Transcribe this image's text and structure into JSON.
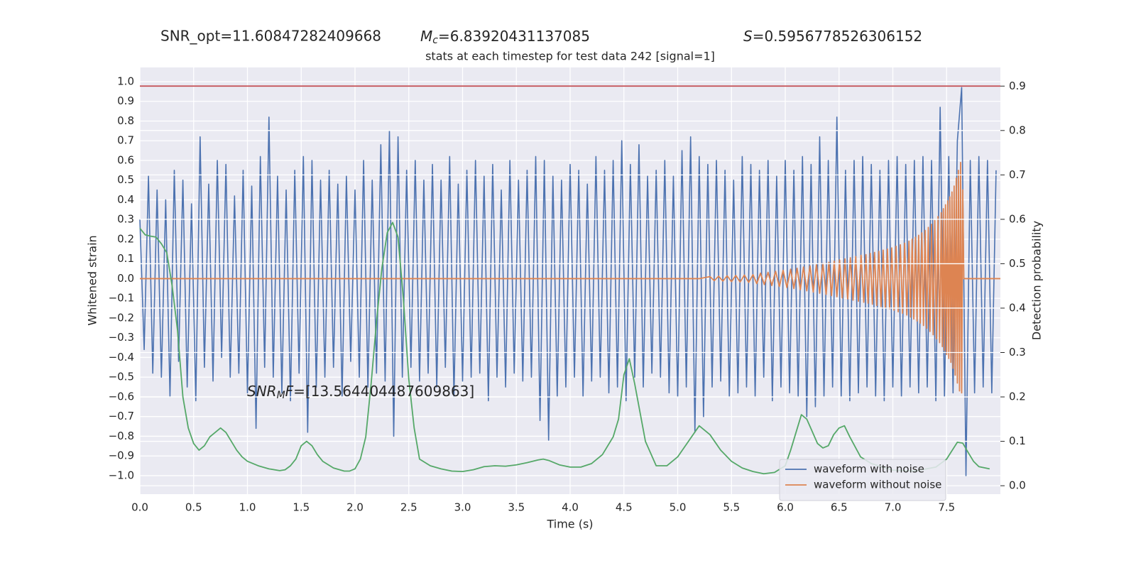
{
  "chart_data": {
    "type": "line",
    "snr_opt": "SNR_opt=11.60847282409668",
    "chirp_mass": {
      "symbol": "M",
      "subscript": "c",
      "value": "=6.83920431137085"
    },
    "spin": {
      "symbol": "S",
      "value": "=0.5956778526306152"
    },
    "title": "stats at each timestep for test data 242 [signal=1]",
    "snr_mf": {
      "symbol": "SNR",
      "subscript": "M",
      "rest": "F",
      "value": "=[13.564404487609863]"
    },
    "xlabel": "Time (s)",
    "ylabel": "Whitened strain",
    "y2label": "Detection probability",
    "xlim": [
      0,
      8
    ],
    "ylim": [
      -1.094,
      1.072
    ],
    "y2lim": [
      -0.019,
      0.942
    ],
    "xticks": [
      {
        "value": 0,
        "label": "0.0"
      },
      0.5,
      {
        "value": 1,
        "label": "1.0"
      },
      1.5,
      {
        "value": 2,
        "label": "2.0"
      },
      2.5,
      {
        "value": 3,
        "label": "3.0"
      },
      3.5,
      {
        "value": 4,
        "label": "4.0"
      },
      4.5,
      {
        "value": 5,
        "label": "5.0"
      },
      5.5,
      {
        "value": 6,
        "label": "6.0"
      },
      6.5,
      {
        "value": 7,
        "label": "7.0"
      },
      7.5
    ],
    "yticks": [
      {
        "value": -1,
        "label": "−1.0"
      },
      {
        "value": -0.9,
        "label": "−0.9"
      },
      {
        "value": -0.8,
        "label": "−0.8"
      },
      {
        "value": -0.7,
        "label": "−0.7"
      },
      {
        "value": -0.6,
        "label": "−0.6"
      },
      {
        "value": -0.5,
        "label": "−0.5"
      },
      {
        "value": -0.4,
        "label": "−0.4"
      },
      {
        "value": -0.3,
        "label": "−0.3"
      },
      {
        "value": -0.2,
        "label": "−0.2"
      },
      {
        "value": -0.1,
        "label": "−0.1"
      },
      {
        "value": 0,
        "label": "0.0"
      },
      0.1,
      0.2,
      0.3,
      0.4,
      0.5,
      0.6,
      0.7,
      0.8,
      0.9,
      {
        "value": 1,
        "label": "1.0"
      }
    ],
    "y2ticks": [
      {
        "value": 0,
        "label": "0.0"
      },
      0.1,
      0.2,
      0.3,
      0.4,
      0.5,
      0.6,
      0.7,
      0.8,
      0.9
    ],
    "grid": true,
    "legend": "lower right",
    "threshold": {
      "value": 0.9,
      "color": "#c44e52",
      "axis": "y2"
    },
    "series": [
      {
        "name": "waveform with noise",
        "color": "#4c72b0",
        "x": [
          0,
          0.04,
          0.08,
          0.12,
          0.16,
          0.2,
          0.24,
          0.28,
          0.32,
          0.36,
          0.4,
          0.44,
          0.48,
          0.52,
          0.56,
          0.6,
          0.64,
          0.68,
          0.72,
          0.76,
          0.8,
          0.84,
          0.88,
          0.92,
          0.96,
          1,
          1.04,
          1.08,
          1.12,
          1.16,
          1.2,
          1.24,
          1.28,
          1.32,
          1.36,
          1.4,
          1.44,
          1.48,
          1.52,
          1.56,
          1.6,
          1.64,
          1.68,
          1.72,
          1.76,
          1.8,
          1.84,
          1.88,
          1.92,
          1.96,
          2,
          2.04,
          2.08,
          2.12,
          2.16,
          2.2,
          2.24,
          2.28,
          2.32,
          2.36,
          2.4,
          2.44,
          2.48,
          2.52,
          2.56,
          2.6,
          2.64,
          2.68,
          2.72,
          2.76,
          2.8,
          2.84,
          2.88,
          2.92,
          2.96,
          3,
          3.04,
          3.08,
          3.12,
          3.16,
          3.2,
          3.24,
          3.28,
          3.32,
          3.36,
          3.4,
          3.44,
          3.48,
          3.52,
          3.56,
          3.6,
          3.64,
          3.68,
          3.72,
          3.76,
          3.8,
          3.84,
          3.88,
          3.92,
          3.96,
          4,
          4.04,
          4.08,
          4.12,
          4.16,
          4.2,
          4.24,
          4.28,
          4.32,
          4.36,
          4.4,
          4.44,
          4.48,
          4.52,
          4.56,
          4.6,
          4.64,
          4.68,
          4.72,
          4.76,
          4.8,
          4.84,
          4.88,
          4.92,
          4.96,
          5,
          5.04,
          5.08,
          5.12,
          5.16,
          5.2,
          5.24,
          5.28,
          5.32,
          5.36,
          5.4,
          5.44,
          5.48,
          5.52,
          5.56,
          5.6,
          5.64,
          5.68,
          5.72,
          5.76,
          5.8,
          5.84,
          5.88,
          5.92,
          5.96,
          6,
          6.04,
          6.08,
          6.12,
          6.16,
          6.2,
          6.24,
          6.28,
          6.32,
          6.36,
          6.4,
          6.44,
          6.48,
          6.52,
          6.56,
          6.6,
          6.64,
          6.68,
          6.72,
          6.76,
          6.8,
          6.84,
          6.88,
          6.92,
          6.96,
          7,
          7.04,
          7.08,
          7.12,
          7.16,
          7.2,
          7.24,
          7.28,
          7.32,
          7.36,
          7.4,
          7.44,
          7.48,
          7.52,
          7.56,
          7.6,
          7.64,
          7.68,
          7.72,
          7.76,
          7.8,
          7.84,
          7.88,
          7.92,
          7.96
        ],
        "values": [
          0.3,
          -0.36,
          0.52,
          -0.48,
          0.45,
          -0.5,
          0.4,
          -0.6,
          0.55,
          -0.42,
          0.5,
          -0.55,
          0.38,
          -0.62,
          0.72,
          -0.45,
          0.48,
          -0.52,
          0.6,
          -0.4,
          0.58,
          -0.5,
          0.42,
          -0.48,
          0.55,
          -0.58,
          0.47,
          -0.76,
          0.62,
          -0.45,
          0.82,
          -0.5,
          0.52,
          -0.58,
          0.45,
          -0.62,
          0.55,
          -0.48,
          0.62,
          -0.78,
          0.6,
          -0.55,
          0.5,
          -0.5,
          0.55,
          -0.45,
          0.48,
          -0.6,
          0.52,
          -0.42,
          0.45,
          -0.5,
          0.6,
          -0.55,
          0.5,
          -0.48,
          0.68,
          -0.52,
          0.75,
          -0.8,
          0.72,
          -0.5,
          0.55,
          -0.45,
          0.6,
          -0.52,
          0.5,
          -0.48,
          0.58,
          -0.55,
          0.5,
          -0.45,
          0.62,
          -0.6,
          0.48,
          -0.52,
          0.55,
          -0.5,
          0.6,
          -0.48,
          0.52,
          -0.62,
          0.58,
          -0.5,
          0.45,
          -0.55,
          0.6,
          -0.48,
          0.5,
          -0.52,
          0.55,
          -0.5,
          0.62,
          -0.72,
          0.6,
          -0.82,
          0.52,
          -0.6,
          0.5,
          -0.55,
          0.58,
          -0.5,
          0.55,
          -0.6,
          0.48,
          -0.52,
          0.62,
          -0.5,
          0.55,
          -0.58,
          0.6,
          -0.55,
          0.7,
          -0.62,
          0.58,
          -0.5,
          0.68,
          -0.55,
          0.52,
          -0.48,
          0.55,
          -0.5,
          0.6,
          -0.58,
          0.52,
          -0.6,
          0.65,
          -0.55,
          0.72,
          -0.78,
          0.62,
          -0.7,
          0.58,
          -0.55,
          0.6,
          -0.52,
          0.55,
          -0.6,
          0.5,
          -0.58,
          0.62,
          -0.55,
          0.58,
          -0.6,
          0.55,
          -0.5,
          0.6,
          -0.62,
          0.52,
          -0.55,
          0.6,
          -0.58,
          0.55,
          -0.6,
          0.62,
          -0.7,
          0.58,
          -0.65,
          0.72,
          -0.6,
          0.6,
          -0.55,
          0.82,
          -0.6,
          0.55,
          -0.62,
          0.6,
          -0.58,
          0.62,
          -0.55,
          0.58,
          -0.6,
          0.55,
          -0.62,
          0.6,
          -0.55,
          0.62,
          -0.6,
          0.58,
          -0.55,
          0.6,
          -0.58,
          0.62,
          -0.55,
          0.6,
          -0.62,
          0.87,
          -0.6,
          0.62,
          -0.58,
          0.7,
          0.97,
          -1.0,
          0.6,
          -0.58,
          0.62,
          -0.55,
          0.6,
          -0.58,
          0.55
        ]
      },
      {
        "name": "waveform without noise",
        "color": "#dd8452",
        "x": [
          0,
          5.2,
          5.3,
          5.34,
          5.38,
          5.42,
          5.46,
          5.5,
          5.54,
          5.58,
          5.62,
          5.66,
          5.7,
          5.735,
          5.77,
          5.805,
          5.84,
          5.875,
          5.91,
          5.945,
          5.98,
          6.015,
          6.05,
          6.08,
          6.11,
          6.14,
          6.17,
          6.2,
          6.23,
          6.26,
          6.29,
          6.32,
          6.35,
          6.38,
          6.405,
          6.43,
          6.455,
          6.48,
          6.505,
          6.53,
          6.555,
          6.58,
          6.605,
          6.63,
          6.655,
          6.68,
          6.705,
          6.73,
          6.75,
          6.77,
          6.79,
          6.81,
          6.83,
          6.85,
          6.87,
          6.89,
          6.91,
          6.93,
          6.95,
          6.97,
          6.99,
          7.01,
          7.03,
          7.05,
          7.07,
          7.09,
          7.11,
          7.13,
          7.15,
          7.165,
          7.18,
          7.195,
          7.21,
          7.225,
          7.24,
          7.255,
          7.27,
          7.285,
          7.3,
          7.315,
          7.33,
          7.345,
          7.36,
          7.375,
          7.39,
          7.405,
          7.42,
          7.435,
          7.45,
          7.46,
          7.47,
          7.48,
          7.49,
          7.5,
          7.51,
          7.52,
          7.53,
          7.54,
          7.55,
          7.56,
          7.57,
          7.58,
          7.59,
          7.6,
          7.61,
          7.62,
          7.63,
          7.64,
          7.65,
          7.66,
          8
        ],
        "values": [
          0,
          0,
          0.01,
          -0.01,
          0.012,
          -0.012,
          0.014,
          -0.015,
          0.016,
          -0.017,
          0.018,
          -0.019,
          0.02,
          -0.025,
          0.028,
          -0.03,
          0.032,
          -0.035,
          0.037,
          -0.04,
          0.042,
          -0.045,
          0.048,
          -0.05,
          0.053,
          -0.056,
          0.059,
          -0.062,
          0.065,
          -0.068,
          0.071,
          -0.074,
          0.077,
          -0.08,
          0.083,
          -0.086,
          0.089,
          -0.092,
          0.095,
          -0.098,
          0.1,
          -0.103,
          0.106,
          -0.109,
          0.112,
          -0.115,
          0.118,
          -0.12,
          0.122,
          -0.125,
          0.128,
          -0.13,
          0.133,
          -0.136,
          0.139,
          -0.142,
          0.145,
          -0.148,
          0.15,
          -0.153,
          0.156,
          -0.16,
          0.164,
          -0.168,
          0.172,
          -0.176,
          0.18,
          -0.185,
          0.19,
          -0.195,
          0.2,
          -0.205,
          0.21,
          -0.215,
          0.22,
          -0.226,
          0.232,
          -0.238,
          0.245,
          -0.252,
          0.26,
          -0.268,
          0.276,
          -0.285,
          0.295,
          -0.305,
          0.315,
          -0.325,
          0.335,
          -0.345,
          0.355,
          -0.365,
          0.375,
          -0.385,
          0.395,
          -0.405,
          0.415,
          -0.425,
          0.44,
          -0.455,
          0.47,
          -0.49,
          0.51,
          -0.53,
          0.55,
          -0.57,
          0.59,
          -0.58,
          0.45,
          0,
          0
        ]
      },
      {
        "color": "#55a868",
        "axis": "y2",
        "x": [
          0,
          0.05,
          0.1,
          0.15,
          0.2,
          0.25,
          0.3,
          0.35,
          0.4,
          0.45,
          0.5,
          0.55,
          0.6,
          0.65,
          0.75,
          0.8,
          0.85,
          0.9,
          0.95,
          1,
          1.1,
          1.2,
          1.3,
          1.35,
          1.4,
          1.45,
          1.5,
          1.55,
          1.6,
          1.65,
          1.7,
          1.8,
          1.9,
          1.95,
          2,
          2.05,
          2.1,
          2.15,
          2.2,
          2.25,
          2.3,
          2.35,
          2.4,
          2.45,
          2.5,
          2.55,
          2.6,
          2.7,
          2.8,
          2.9,
          3,
          3.1,
          3.2,
          3.3,
          3.4,
          3.5,
          3.6,
          3.7,
          3.75,
          3.8,
          3.9,
          4,
          4.1,
          4.2,
          4.3,
          4.4,
          4.45,
          4.5,
          4.55,
          4.6,
          4.7,
          4.8,
          4.9,
          4.95,
          5,
          5.1,
          5.2,
          5.3,
          5.4,
          5.5,
          5.6,
          5.7,
          5.8,
          5.9,
          6,
          6.05,
          6.1,
          6.15,
          6.2,
          6.3,
          6.35,
          6.4,
          6.45,
          6.5,
          6.55,
          6.6,
          6.7,
          6.8,
          7,
          7.2,
          7.4,
          7.5,
          7.6,
          7.65,
          7.7,
          7.75,
          7.8,
          7.9
        ],
        "values": [
          0.58,
          0.565,
          0.562,
          0.56,
          0.545,
          0.525,
          0.45,
          0.35,
          0.2,
          0.13,
          0.095,
          0.08,
          0.09,
          0.11,
          0.13,
          0.12,
          0.1,
          0.08,
          0.065,
          0.055,
          0.045,
          0.038,
          0.034,
          0.036,
          0.045,
          0.06,
          0.09,
          0.1,
          0.09,
          0.07,
          0.055,
          0.04,
          0.033,
          0.033,
          0.038,
          0.06,
          0.11,
          0.23,
          0.37,
          0.49,
          0.57,
          0.593,
          0.56,
          0.42,
          0.24,
          0.13,
          0.06,
          0.045,
          0.038,
          0.033,
          0.032,
          0.036,
          0.043,
          0.045,
          0.044,
          0.047,
          0.052,
          0.058,
          0.06,
          0.057,
          0.047,
          0.042,
          0.042,
          0.05,
          0.07,
          0.11,
          0.15,
          0.25,
          0.286,
          0.23,
          0.1,
          0.045,
          0.045,
          0.055,
          0.065,
          0.1,
          0.135,
          0.115,
          0.08,
          0.055,
          0.04,
          0.032,
          0.027,
          0.03,
          0.045,
          0.08,
          0.12,
          0.16,
          0.15,
          0.095,
          0.085,
          0.09,
          0.115,
          0.13,
          0.135,
          0.11,
          0.065,
          0.05,
          0.035,
          0.033,
          0.042,
          0.06,
          0.098,
          0.096,
          0.075,
          0.055,
          0.043,
          0.038
        ]
      }
    ]
  }
}
